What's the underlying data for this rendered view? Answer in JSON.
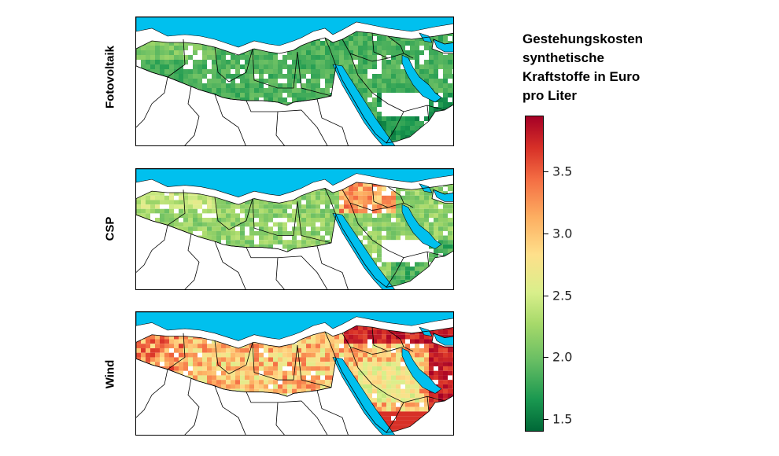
{
  "panels": [
    {
      "label": "Fotovoltaik",
      "scheme": "pv"
    },
    {
      "label": "CSP",
      "scheme": "csp"
    },
    {
      "label": "Wind",
      "scheme": "wind"
    }
  ],
  "colorbar": {
    "title_lines": [
      "Gestehungskosten",
      "synthetische",
      "Kraftstoffe in Euro",
      "pro Liter"
    ],
    "ticks": [
      "3.5",
      "3.0",
      "2.5",
      "2.0",
      "1.5"
    ],
    "tick_values": [
      3.5,
      3.0,
      2.5,
      2.0,
      1.5
    ],
    "range": [
      1.4,
      3.95
    ],
    "colormap": "RdYlGn_r"
  },
  "colors": {
    "water": "#00c0ee",
    "land_empty": "#ffffff",
    "border": "#000000"
  }
}
